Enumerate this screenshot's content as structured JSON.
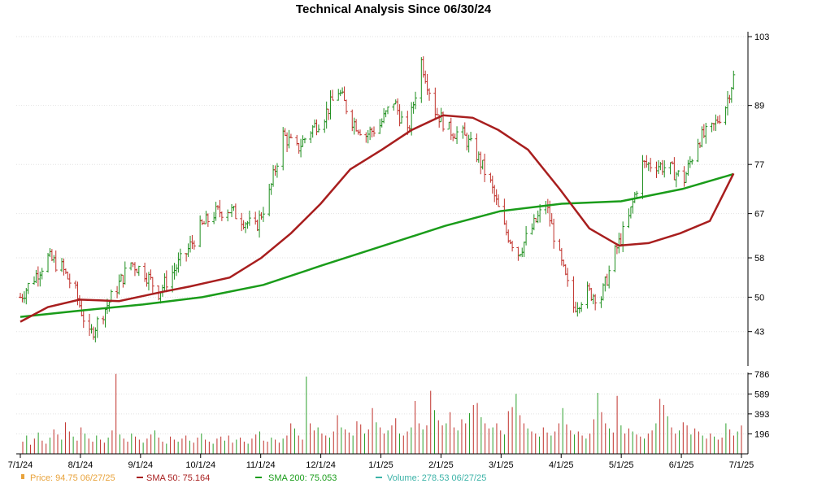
{
  "chart_data": {
    "type": "line",
    "title": "Technical Analysis Since 06/30/24",
    "price_axis": {
      "ticks": [
        103,
        89,
        77,
        67,
        58,
        50,
        43
      ],
      "range": [
        36,
        104
      ]
    },
    "volume_axis": {
      "ticks": [
        786,
        589,
        393,
        196
      ],
      "range": [
        0,
        800
      ]
    },
    "x_ticks": [
      "7/1/24",
      "8/1/24",
      "9/1/24",
      "10/1/24",
      "11/1/24",
      "12/1/24",
      "1/1/25",
      "2/1/25",
      "3/1/25",
      "4/1/25",
      "5/1/25",
      "6/1/25",
      "7/1/25"
    ],
    "x_range": [
      "2024-07-01",
      "2025-07-01"
    ],
    "legend": [
      {
        "label": "Price: 94.75  06/27/25",
        "color": "#e8a33c",
        "marker": "square"
      },
      {
        "label": "SMA 50: 75.164",
        "color": "#a52a2a",
        "marker": "line"
      },
      {
        "label": "SMA 200: 75.053",
        "color": "#2ca02c",
        "marker": "line"
      },
      {
        "label": "Volume: 278.53  06/27/25",
        "color": "#3cb3a8",
        "marker": "line"
      }
    ],
    "price_series": {
      "name": "Price",
      "points": [
        [
          "2024-07-01",
          50
        ],
        [
          "2024-07-08",
          54
        ],
        [
          "2024-07-15",
          58
        ],
        [
          "2024-07-22",
          56
        ],
        [
          "2024-07-29",
          51
        ],
        [
          "2024-08-05",
          42
        ],
        [
          "2024-08-12",
          47
        ],
        [
          "2024-08-19",
          52
        ],
        [
          "2024-08-26",
          57
        ],
        [
          "2024-09-02",
          55
        ],
        [
          "2024-09-09",
          51
        ],
        [
          "2024-09-16",
          55
        ],
        [
          "2024-09-23",
          59
        ],
        [
          "2024-09-30",
          64
        ],
        [
          "2024-10-07",
          67
        ],
        [
          "2024-10-14",
          68
        ],
        [
          "2024-10-21",
          66
        ],
        [
          "2024-10-28",
          64
        ],
        [
          "2024-11-04",
          71
        ],
        [
          "2024-11-11",
          83
        ],
        [
          "2024-11-18",
          80
        ],
        [
          "2024-11-25",
          84
        ],
        [
          "2024-12-02",
          87
        ],
        [
          "2024-12-09",
          92
        ],
        [
          "2024-12-16",
          86
        ],
        [
          "2024-12-23",
          83
        ],
        [
          "2024-12-30",
          85
        ],
        [
          "2025-01-06",
          90
        ],
        [
          "2025-01-13",
          83
        ],
        [
          "2025-01-20",
          98
        ],
        [
          "2025-01-27",
          88
        ],
        [
          "2025-02-03",
          84
        ],
        [
          "2025-02-10",
          83
        ],
        [
          "2025-02-17",
          79
        ],
        [
          "2025-02-24",
          73
        ],
        [
          "2025-03-03",
          64
        ],
        [
          "2025-03-10",
          59
        ],
        [
          "2025-03-17",
          64
        ],
        [
          "2025-03-24",
          69
        ],
        [
          "2025-03-31",
          58
        ],
        [
          "2025-04-07",
          48
        ],
        [
          "2025-04-14",
          51
        ],
        [
          "2025-04-21",
          50
        ],
        [
          "2025-04-28",
          59
        ],
        [
          "2025-05-05",
          66
        ],
        [
          "2025-05-12",
          77
        ],
        [
          "2025-05-19",
          77
        ],
        [
          "2025-05-26",
          76
        ],
        [
          "2025-06-02",
          74
        ],
        [
          "2025-06-09",
          82
        ],
        [
          "2025-06-16",
          84
        ],
        [
          "2025-06-23",
          89
        ],
        [
          "2025-06-27",
          94.75
        ]
      ]
    },
    "sma50_series": {
      "name": "SMA 50",
      "points": [
        [
          "2024-07-01",
          45
        ],
        [
          "2024-07-15",
          48
        ],
        [
          "2024-07-31",
          49.5
        ],
        [
          "2024-08-20",
          49.2
        ],
        [
          "2024-09-10",
          51
        ],
        [
          "2024-09-25",
          52.2
        ],
        [
          "2024-10-15",
          54
        ],
        [
          "2024-10-31",
          58
        ],
        [
          "2024-11-15",
          63
        ],
        [
          "2024-11-30",
          69
        ],
        [
          "2024-12-15",
          76
        ],
        [
          "2024-12-31",
          80
        ],
        [
          "2025-01-15",
          84
        ],
        [
          "2025-01-31",
          87
        ],
        [
          "2025-02-15",
          86.5
        ],
        [
          "2025-02-28",
          84
        ],
        [
          "2025-03-15",
          80
        ],
        [
          "2025-03-31",
          72
        ],
        [
          "2025-04-15",
          64
        ],
        [
          "2025-04-30",
          60.5
        ],
        [
          "2025-05-15",
          61
        ],
        [
          "2025-05-31",
          63
        ],
        [
          "2025-06-15",
          65.5
        ],
        [
          "2025-06-27",
          75.16
        ]
      ]
    },
    "sma200_series": {
      "name": "SMA 200",
      "points": [
        [
          "2024-07-01",
          46
        ],
        [
          "2024-08-01",
          47.3
        ],
        [
          "2024-09-01",
          48.5
        ],
        [
          "2024-10-01",
          50
        ],
        [
          "2024-11-01",
          52.5
        ],
        [
          "2024-12-01",
          56.5
        ],
        [
          "2025-01-01",
          60.5
        ],
        [
          "2025-02-01",
          64.5
        ],
        [
          "2025-03-01",
          67.5
        ],
        [
          "2025-04-01",
          69
        ],
        [
          "2025-05-01",
          69.5
        ],
        [
          "2025-06-01",
          72
        ],
        [
          "2025-06-27",
          75.05
        ]
      ]
    },
    "volume_series": {
      "name": "Volume",
      "values": [
        120,
        180,
        90,
        150,
        210,
        130,
        100,
        160,
        240,
        190,
        140,
        310,
        220,
        170,
        130,
        260,
        200,
        150,
        120,
        180,
        140,
        110,
        160,
        230,
        786,
        190,
        150,
        120,
        200,
        170,
        140,
        110,
        150,
        190,
        230,
        160,
        120,
        100,
        170,
        140,
        120,
        150,
        180,
        130,
        110,
        160,
        200,
        140,
        120,
        100,
        150,
        170,
        130,
        180,
        110,
        140,
        160,
        120,
        100,
        150,
        190,
        220,
        130,
        120,
        160,
        140,
        110,
        150,
        180,
        300,
        250,
        180,
        140,
        760,
        300,
        230,
        260,
        200,
        180,
        160,
        220,
        380,
        260,
        240,
        210,
        180,
        320,
        290,
        200,
        240,
        450,
        310,
        260,
        200,
        230,
        280,
        350,
        200,
        180,
        220,
        260,
        520,
        300,
        240,
        280,
        620,
        430,
        330,
        280,
        300,
        410,
        260,
        230,
        340,
        300,
        400,
        480,
        500,
        360,
        300,
        250,
        260,
        300,
        230,
        190,
        420,
        460,
        590,
        380,
        300,
        250,
        220,
        200,
        170,
        260,
        210,
        180,
        220,
        300,
        450,
        290,
        230,
        190,
        220,
        180,
        150,
        200,
        340,
        600,
        410,
        300,
        250,
        210,
        570,
        280,
        200,
        250,
        220,
        190,
        170,
        150,
        200,
        230,
        300,
        540,
        480,
        370,
        260,
        200,
        230,
        310,
        280,
        190,
        250,
        220,
        180,
        150,
        200,
        170,
        140,
        160,
        300,
        240,
        180,
        220,
        278.53
      ]
    }
  }
}
